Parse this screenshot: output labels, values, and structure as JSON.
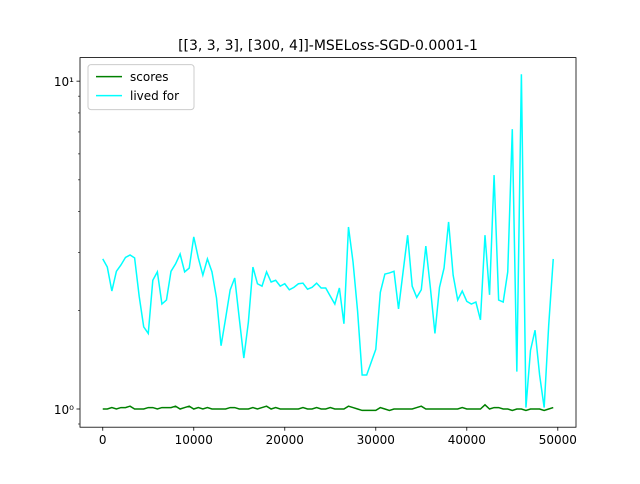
{
  "chart_data": {
    "type": "line",
    "title": "[[3, 3, 3], [300, 4]]-MSELoss-SGD-0.0001-1",
    "x": [
      0,
      500,
      1000,
      1500,
      2000,
      2500,
      3000,
      3500,
      4000,
      4500,
      5000,
      5500,
      6000,
      6500,
      7000,
      7500,
      8000,
      8500,
      9000,
      9500,
      10000,
      10500,
      11000,
      11500,
      12000,
      12500,
      13000,
      13500,
      14000,
      14500,
      15000,
      15500,
      16000,
      16500,
      17000,
      17500,
      18000,
      18500,
      19000,
      19500,
      20000,
      20500,
      21000,
      21500,
      22000,
      22500,
      23000,
      23500,
      24000,
      24500,
      25000,
      25500,
      26000,
      26500,
      27000,
      27500,
      28000,
      28500,
      29000,
      29500,
      30000,
      30500,
      31000,
      31500,
      32000,
      32500,
      33000,
      33500,
      34000,
      34500,
      35000,
      35500,
      36000,
      36500,
      37000,
      37500,
      38000,
      38500,
      39000,
      39500,
      40000,
      40500,
      41000,
      41500,
      42000,
      42500,
      43000,
      43500,
      44000,
      44500,
      45000,
      45500,
      46000,
      46500,
      47000,
      47500,
      48000,
      48500,
      49000,
      49500
    ],
    "series": [
      {
        "name": "scores",
        "color": "#008000",
        "values": [
          1.0,
          1.0,
          1.01,
          1.0,
          1.01,
          1.01,
          1.02,
          1.0,
          1.0,
          1.0,
          1.01,
          1.01,
          1.0,
          1.01,
          1.01,
          1.01,
          1.02,
          1.0,
          1.01,
          1.02,
          1.0,
          1.01,
          1.0,
          1.01,
          1.0,
          1.0,
          1.0,
          1.0,
          1.01,
          1.01,
          1.0,
          1.0,
          1.0,
          1.01,
          1.0,
          1.01,
          1.02,
          1.0,
          1.01,
          1.0,
          1.0,
          1.0,
          1.0,
          1.0,
          1.01,
          1.0,
          1.0,
          1.01,
          1.0,
          1.0,
          1.01,
          1.0,
          1.0,
          1.0,
          1.02,
          1.01,
          1.0,
          0.99,
          0.99,
          0.99,
          0.99,
          1.01,
          1.0,
          0.99,
          1.0,
          1.0,
          1.0,
          1.0,
          1.0,
          1.01,
          1.02,
          1.0,
          1.0,
          1.0,
          1.0,
          1.0,
          1.0,
          1.0,
          1.0,
          1.01,
          1.0,
          1.0,
          1.0,
          1.0,
          1.03,
          1.0,
          1.01,
          1.01,
          1.0,
          1.0,
          0.99,
          1.0,
          1.0,
          0.99,
          1.0,
          1.0,
          1.0,
          0.99,
          1.0,
          1.01
        ]
      },
      {
        "name": "lived for",
        "color": "#00ffff",
        "values": [
          2.87,
          2.71,
          2.29,
          2.63,
          2.75,
          2.9,
          2.95,
          2.89,
          2.21,
          1.78,
          1.7,
          2.47,
          2.62,
          2.09,
          2.15,
          2.63,
          2.77,
          2.97,
          2.62,
          2.69,
          3.35,
          2.89,
          2.56,
          2.87,
          2.62,
          2.18,
          1.56,
          1.89,
          2.31,
          2.51,
          1.89,
          1.43,
          1.84,
          2.71,
          2.41,
          2.37,
          2.62,
          2.44,
          2.47,
          2.37,
          2.41,
          2.31,
          2.35,
          2.41,
          2.42,
          2.32,
          2.35,
          2.42,
          2.34,
          2.34,
          2.21,
          2.09,
          2.34,
          1.82,
          3.59,
          2.81,
          1.99,
          1.27,
          1.27,
          1.39,
          1.52,
          2.27,
          2.58,
          2.6,
          2.63,
          2.02,
          2.62,
          3.39,
          2.37,
          2.19,
          2.31,
          3.14,
          2.34,
          1.7,
          2.35,
          2.69,
          3.72,
          2.56,
          2.15,
          2.29,
          2.13,
          2.09,
          2.12,
          1.87,
          3.39,
          2.23,
          5.17,
          2.15,
          2.12,
          2.62,
          7.14,
          1.3,
          10.5,
          1.01,
          1.51,
          1.74,
          1.27,
          1.01,
          1.8,
          2.87
        ]
      }
    ],
    "xlim": [
      -2500,
      52000
    ],
    "xticks": [
      0,
      10000,
      20000,
      30000,
      40000,
      50000
    ],
    "ylim": [
      0.88,
      11.8
    ],
    "yticks": [
      {
        "value": 1,
        "label": "10⁰"
      },
      {
        "value": 10,
        "label": "10¹"
      }
    ],
    "yminorticks": [
      0.9,
      2,
      3,
      4,
      5,
      6,
      7,
      8,
      9
    ],
    "yscale": "log",
    "legend": "upper left"
  }
}
